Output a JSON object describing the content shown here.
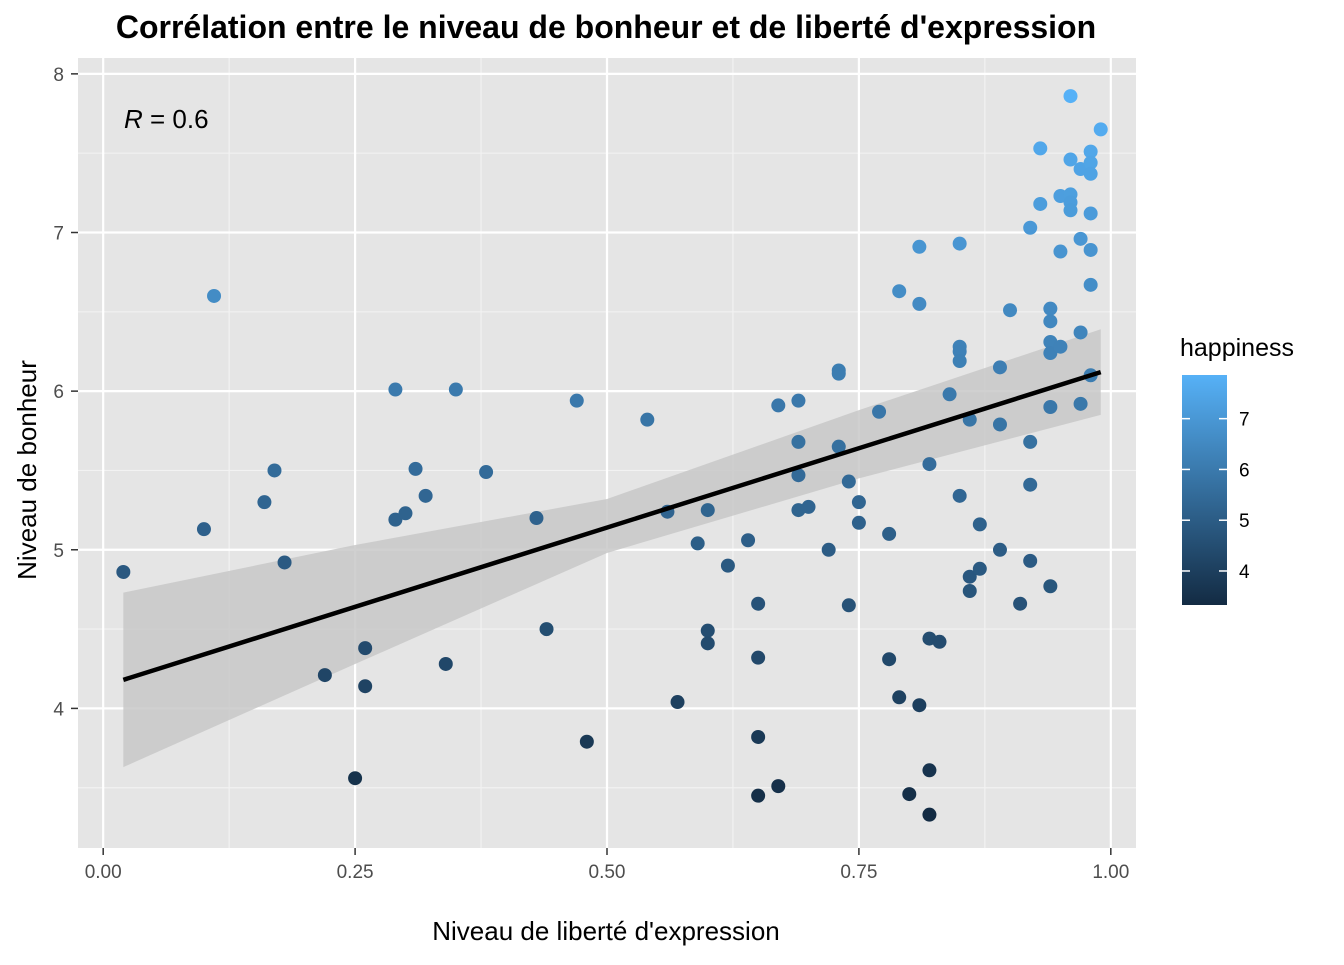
{
  "chart_data": {
    "type": "scatter",
    "title": "Corrélation entre le niveau de bonheur et de liberté d'expression",
    "xlabel": "Niveau de liberté d'expression",
    "ylabel": "Niveau de bonheur",
    "annotation": {
      "prefix": "R",
      "text": " = 0.6"
    },
    "xlim": [
      -0.025,
      1.025
    ],
    "ylim": [
      3.12,
      8.1
    ],
    "x_ticks": [
      0.0,
      0.25,
      0.5,
      0.75,
      1.0
    ],
    "x_tick_labels": [
      "0.00",
      "0.25",
      "0.50",
      "0.75",
      "1.00"
    ],
    "y_ticks": [
      4,
      5,
      6,
      7,
      8
    ],
    "y_tick_labels": [
      "4",
      "5",
      "6",
      "7",
      "8"
    ],
    "grid": true,
    "panel_background": "#e5e5e5",
    "legend": {
      "title": "happiness",
      "position": "right",
      "range": [
        3.33,
        7.86
      ],
      "ticks": [
        4,
        5,
        6,
        7
      ],
      "tick_labels": [
        "4",
        "5",
        "6",
        "7"
      ],
      "color_low": "#132b43",
      "color_high": "#56b1f7"
    },
    "trend_line": {
      "x": [
        0.02,
        0.99
      ],
      "y": [
        4.18,
        6.12
      ],
      "color": "#000000"
    },
    "confidence_band": {
      "x": [
        0.02,
        0.25,
        0.5,
        0.75,
        0.99
      ],
      "lower": [
        3.63,
        4.28,
        4.98,
        5.45,
        5.85
      ],
      "upper": [
        4.73,
        5.03,
        5.32,
        5.88,
        6.39
      ],
      "color": "#c8c8c8"
    },
    "points": [
      {
        "x": 0.02,
        "y": 4.86
      },
      {
        "x": 0.1,
        "y": 5.13
      },
      {
        "x": 0.11,
        "y": 6.6
      },
      {
        "x": 0.16,
        "y": 5.3
      },
      {
        "x": 0.17,
        "y": 5.5
      },
      {
        "x": 0.18,
        "y": 4.92
      },
      {
        "x": 0.22,
        "y": 4.21
      },
      {
        "x": 0.25,
        "y": 3.56
      },
      {
        "x": 0.26,
        "y": 4.38
      },
      {
        "x": 0.26,
        "y": 4.14
      },
      {
        "x": 0.29,
        "y": 6.01
      },
      {
        "x": 0.29,
        "y": 5.19
      },
      {
        "x": 0.3,
        "y": 5.23
      },
      {
        "x": 0.31,
        "y": 5.51
      },
      {
        "x": 0.32,
        "y": 5.34
      },
      {
        "x": 0.34,
        "y": 4.28
      },
      {
        "x": 0.35,
        "y": 6.01
      },
      {
        "x": 0.38,
        "y": 5.49
      },
      {
        "x": 0.43,
        "y": 5.2
      },
      {
        "x": 0.44,
        "y": 4.5
      },
      {
        "x": 0.47,
        "y": 5.94
      },
      {
        "x": 0.48,
        "y": 3.79
      },
      {
        "x": 0.54,
        "y": 5.82
      },
      {
        "x": 0.56,
        "y": 5.24
      },
      {
        "x": 0.57,
        "y": 4.04
      },
      {
        "x": 0.59,
        "y": 5.04
      },
      {
        "x": 0.6,
        "y": 5.25
      },
      {
        "x": 0.6,
        "y": 4.49
      },
      {
        "x": 0.6,
        "y": 4.41
      },
      {
        "x": 0.62,
        "y": 4.9
      },
      {
        "x": 0.64,
        "y": 5.06
      },
      {
        "x": 0.65,
        "y": 4.66
      },
      {
        "x": 0.65,
        "y": 4.32
      },
      {
        "x": 0.65,
        "y": 3.82
      },
      {
        "x": 0.65,
        "y": 3.45
      },
      {
        "x": 0.67,
        "y": 3.51
      },
      {
        "x": 0.67,
        "y": 5.91
      },
      {
        "x": 0.69,
        "y": 5.94
      },
      {
        "x": 0.69,
        "y": 5.68
      },
      {
        "x": 0.69,
        "y": 5.47
      },
      {
        "x": 0.69,
        "y": 5.25
      },
      {
        "x": 0.7,
        "y": 5.27
      },
      {
        "x": 0.72,
        "y": 5.0
      },
      {
        "x": 0.73,
        "y": 6.13
      },
      {
        "x": 0.73,
        "y": 6.11
      },
      {
        "x": 0.73,
        "y": 5.65
      },
      {
        "x": 0.74,
        "y": 5.43
      },
      {
        "x": 0.74,
        "y": 4.65
      },
      {
        "x": 0.75,
        "y": 5.3
      },
      {
        "x": 0.75,
        "y": 5.17
      },
      {
        "x": 0.77,
        "y": 5.87
      },
      {
        "x": 0.78,
        "y": 5.1
      },
      {
        "x": 0.78,
        "y": 4.31
      },
      {
        "x": 0.79,
        "y": 6.63
      },
      {
        "x": 0.79,
        "y": 4.07
      },
      {
        "x": 0.8,
        "y": 3.46
      },
      {
        "x": 0.81,
        "y": 6.91
      },
      {
        "x": 0.81,
        "y": 6.55
      },
      {
        "x": 0.81,
        "y": 4.02
      },
      {
        "x": 0.82,
        "y": 5.54
      },
      {
        "x": 0.82,
        "y": 4.44
      },
      {
        "x": 0.82,
        "y": 3.61
      },
      {
        "x": 0.82,
        "y": 3.33
      },
      {
        "x": 0.83,
        "y": 4.42
      },
      {
        "x": 0.84,
        "y": 5.98
      },
      {
        "x": 0.85,
        "y": 6.93
      },
      {
        "x": 0.85,
        "y": 6.28
      },
      {
        "x": 0.85,
        "y": 6.25
      },
      {
        "x": 0.85,
        "y": 6.19
      },
      {
        "x": 0.85,
        "y": 5.34
      },
      {
        "x": 0.86,
        "y": 5.82
      },
      {
        "x": 0.86,
        "y": 4.83
      },
      {
        "x": 0.86,
        "y": 4.74
      },
      {
        "x": 0.87,
        "y": 5.16
      },
      {
        "x": 0.87,
        "y": 4.88
      },
      {
        "x": 0.89,
        "y": 6.15
      },
      {
        "x": 0.89,
        "y": 5.79
      },
      {
        "x": 0.89,
        "y": 5.0
      },
      {
        "x": 0.9,
        "y": 6.51
      },
      {
        "x": 0.91,
        "y": 4.66
      },
      {
        "x": 0.92,
        "y": 7.03
      },
      {
        "x": 0.92,
        "y": 5.68
      },
      {
        "x": 0.92,
        "y": 5.41
      },
      {
        "x": 0.92,
        "y": 4.93
      },
      {
        "x": 0.93,
        "y": 7.53
      },
      {
        "x": 0.93,
        "y": 7.18
      },
      {
        "x": 0.94,
        "y": 6.52
      },
      {
        "x": 0.94,
        "y": 6.44
      },
      {
        "x": 0.94,
        "y": 6.31
      },
      {
        "x": 0.94,
        "y": 6.24
      },
      {
        "x": 0.94,
        "y": 5.9
      },
      {
        "x": 0.94,
        "y": 4.77
      },
      {
        "x": 0.95,
        "y": 7.23
      },
      {
        "x": 0.95,
        "y": 6.88
      },
      {
        "x": 0.95,
        "y": 6.28
      },
      {
        "x": 0.96,
        "y": 7.86
      },
      {
        "x": 0.96,
        "y": 7.46
      },
      {
        "x": 0.96,
        "y": 7.24
      },
      {
        "x": 0.96,
        "y": 7.19
      },
      {
        "x": 0.96,
        "y": 7.14
      },
      {
        "x": 0.97,
        "y": 7.4
      },
      {
        "x": 0.97,
        "y": 6.96
      },
      {
        "x": 0.97,
        "y": 6.37
      },
      {
        "x": 0.97,
        "y": 5.92
      },
      {
        "x": 0.98,
        "y": 7.51
      },
      {
        "x": 0.98,
        "y": 7.44
      },
      {
        "x": 0.98,
        "y": 7.37
      },
      {
        "x": 0.98,
        "y": 7.12
      },
      {
        "x": 0.98,
        "y": 6.89
      },
      {
        "x": 0.98,
        "y": 6.67
      },
      {
        "x": 0.98,
        "y": 6.1
      },
      {
        "x": 0.99,
        "y": 7.65
      }
    ]
  }
}
